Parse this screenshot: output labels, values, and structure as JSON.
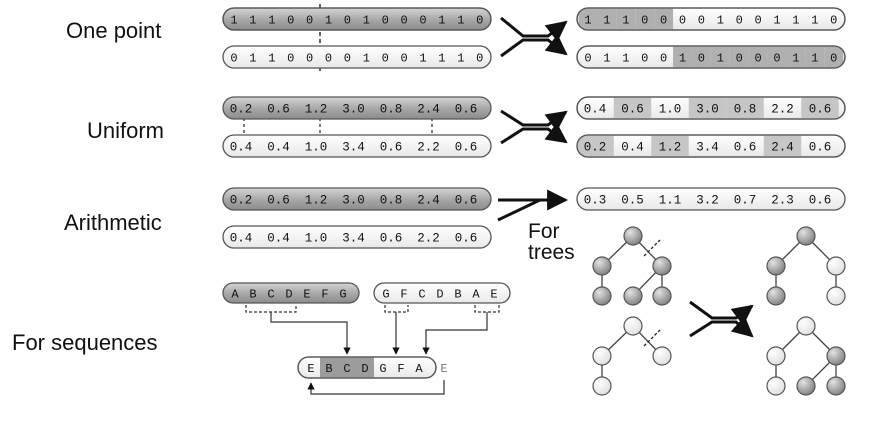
{
  "labels": {
    "one_point": "One point",
    "uniform": "Uniform",
    "arithmetic": "Arithmetic",
    "sequences": "For sequences",
    "trees_line1": "For",
    "trees_line2": "trees"
  },
  "one_point": {
    "parent1": [
      "1",
      "1",
      "1",
      "0",
      "0",
      "1",
      "0",
      "1",
      "0",
      "0",
      "0",
      "1",
      "1",
      "0"
    ],
    "parent2": [
      "0",
      "1",
      "1",
      "0",
      "0",
      "0",
      "0",
      "1",
      "0",
      "0",
      "1",
      "1",
      "1",
      "0"
    ],
    "child1": [
      "1",
      "1",
      "1",
      "0",
      "0",
      "0",
      "0",
      "1",
      "0",
      "0",
      "1",
      "1",
      "1",
      "0"
    ],
    "child2": [
      "0",
      "1",
      "1",
      "0",
      "0",
      "1",
      "0",
      "1",
      "0",
      "0",
      "0",
      "1",
      "1",
      "0"
    ]
  },
  "uniform": {
    "parent1": [
      "0.2",
      "0.6",
      "1.2",
      "3.0",
      "0.8",
      "2.4",
      "0.6"
    ],
    "parent2": [
      "0.4",
      "0.4",
      "1.0",
      "3.4",
      "0.6",
      "2.2",
      "0.6"
    ],
    "child1": [
      "0.4",
      "0.6",
      "1.0",
      "3.0",
      "0.8",
      "2.2",
      "0.6"
    ],
    "child2": [
      "0.2",
      "0.4",
      "1.2",
      "3.4",
      "0.6",
      "2.4",
      "0.6"
    ]
  },
  "arithmetic": {
    "parent1": [
      "0.2",
      "0.6",
      "1.2",
      "3.0",
      "0.8",
      "2.4",
      "0.6"
    ],
    "parent2": [
      "0.4",
      "0.4",
      "1.0",
      "3.4",
      "0.6",
      "2.2",
      "0.6"
    ],
    "child": [
      "0.3",
      "0.5",
      "1.1",
      "3.2",
      "0.7",
      "2.3",
      "0.6"
    ]
  },
  "sequences": {
    "parent1": [
      "A",
      "B",
      "C",
      "D",
      "E",
      "F",
      "G"
    ],
    "parent2": [
      "G",
      "F",
      "C",
      "D",
      "B",
      "A",
      "E"
    ],
    "child": [
      "E",
      "B",
      "C",
      "D",
      "G",
      "F",
      "A"
    ],
    "removed": "E"
  },
  "colors": {
    "dark_bar": "#a8a8a8",
    "light_bar": "#f7f7f7",
    "mid_cell": "#c4c4c4",
    "stroke": "#555555",
    "node_dark": "#9a9a9a",
    "node_light": "#ffffff"
  }
}
